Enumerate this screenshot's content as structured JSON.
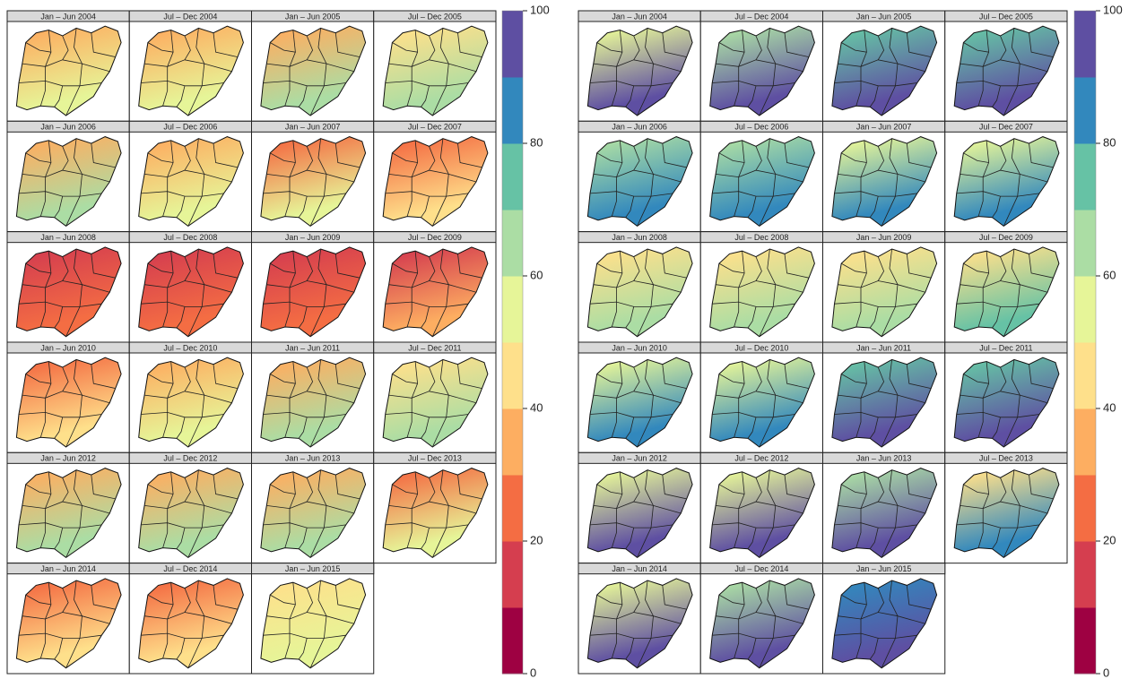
{
  "maps": [
    {
      "lim": [
        0,
        100
      ],
      "ticks": [
        0,
        20,
        40,
        60,
        80,
        100
      ],
      "colors": [
        "#9e0142",
        "#d53e4f",
        "#f46d43",
        "#fdae61",
        "#fee08b",
        "#e6f598",
        "#abdda4",
        "#66c2a5",
        "#3288bd",
        "#5e4fa2"
      ],
      "panels": [
        {
          "title": "Jan – Jun 2004",
          "colors": [
            "#fdae61",
            "#e6f598"
          ]
        },
        {
          "title": "Jul – Dec 2004",
          "colors": [
            "#fdae61",
            "#e6f598"
          ]
        },
        {
          "title": "Jan – Jun 2005",
          "colors": [
            "#fdae61",
            "#abdda4"
          ]
        },
        {
          "title": "Jul – Dec 2005",
          "colors": [
            "#fee08b",
            "#abdda4"
          ]
        },
        {
          "title": "Jan – Jun 2006",
          "colors": [
            "#fdae61",
            "#abdda4"
          ]
        },
        {
          "title": "Jul – Dec 2006",
          "colors": [
            "#fdae61",
            "#e6f598"
          ]
        },
        {
          "title": "Jan – Jun 2007",
          "colors": [
            "#f46d43",
            "#e6f598"
          ]
        },
        {
          "title": "Jul – Dec 2007",
          "colors": [
            "#f46d43",
            "#fee08b"
          ]
        },
        {
          "title": "Jan – Jun 2008",
          "colors": [
            "#d53e4f",
            "#f46d43"
          ]
        },
        {
          "title": "Jul – Dec 2008",
          "colors": [
            "#d53e4f",
            "#f46d43"
          ]
        },
        {
          "title": "Jan – Jun 2009",
          "colors": [
            "#d53e4f",
            "#f46d43"
          ]
        },
        {
          "title": "Jul – Dec 2009",
          "colors": [
            "#d53e4f",
            "#fdae61"
          ]
        },
        {
          "title": "Jan – Jun 2010",
          "colors": [
            "#f46d43",
            "#fee08b"
          ]
        },
        {
          "title": "Jul – Dec 2010",
          "colors": [
            "#fdae61",
            "#e6f598"
          ]
        },
        {
          "title": "Jan – Jun 2011",
          "colors": [
            "#fdae61",
            "#abdda4"
          ]
        },
        {
          "title": "Jul – Dec 2011",
          "colors": [
            "#fee08b",
            "#abdda4"
          ]
        },
        {
          "title": "Jan – Jun 2012",
          "colors": [
            "#fdae61",
            "#abdda4"
          ]
        },
        {
          "title": "Jul – Dec 2012",
          "colors": [
            "#fdae61",
            "#abdda4"
          ]
        },
        {
          "title": "Jan – Jun 2013",
          "colors": [
            "#fdae61",
            "#abdda4"
          ]
        },
        {
          "title": "Jul – Dec 2013",
          "colors": [
            "#f46d43",
            "#e6f598"
          ]
        },
        {
          "title": "Jan – Jun 2014",
          "colors": [
            "#f46d43",
            "#fee08b"
          ]
        },
        {
          "title": "Jul – Dec 2014",
          "colors": [
            "#f46d43",
            "#fee08b"
          ]
        },
        {
          "title": "Jan – Jun 2015",
          "colors": [
            "#fee08b",
            "#e6f598"
          ]
        }
      ]
    },
    {
      "lim": [
        0,
        100
      ],
      "ticks": [
        0,
        20,
        40,
        60,
        80,
        100
      ],
      "colors": [
        "#9e0142",
        "#d53e4f",
        "#f46d43",
        "#fdae61",
        "#fee08b",
        "#e6f598",
        "#abdda4",
        "#66c2a5",
        "#3288bd",
        "#5e4fa2"
      ],
      "panels": [
        {
          "title": "Jan – Jun 2004",
          "colors": [
            "#e6f598",
            "#5e4fa2"
          ]
        },
        {
          "title": "Jul – Dec 2004",
          "colors": [
            "#abdda4",
            "#5e4fa2"
          ]
        },
        {
          "title": "Jan – Jun 2005",
          "colors": [
            "#66c2a5",
            "#5e4fa2"
          ]
        },
        {
          "title": "Jul – Dec 2005",
          "colors": [
            "#66c2a5",
            "#5e4fa2"
          ]
        },
        {
          "title": "Jan – Jun 2006",
          "colors": [
            "#abdda4",
            "#3288bd"
          ]
        },
        {
          "title": "Jul – Dec 2006",
          "colors": [
            "#abdda4",
            "#3288bd"
          ]
        },
        {
          "title": "Jan – Jun 2007",
          "colors": [
            "#e6f598",
            "#3288bd"
          ]
        },
        {
          "title": "Jul – Dec 2007",
          "colors": [
            "#e6f598",
            "#3288bd"
          ]
        },
        {
          "title": "Jan – Jun 2008",
          "colors": [
            "#fee08b",
            "#abdda4"
          ]
        },
        {
          "title": "Jul – Dec 2008",
          "colors": [
            "#fee08b",
            "#abdda4"
          ]
        },
        {
          "title": "Jan – Jun 2009",
          "colors": [
            "#fee08b",
            "#abdda4"
          ]
        },
        {
          "title": "Jul – Dec 2009",
          "colors": [
            "#fee08b",
            "#66c2a5"
          ]
        },
        {
          "title": "Jan – Jun 2010",
          "colors": [
            "#e6f598",
            "#3288bd"
          ]
        },
        {
          "title": "Jul – Dec 2010",
          "colors": [
            "#e6f598",
            "#3288bd"
          ]
        },
        {
          "title": "Jan – Jun 2011",
          "colors": [
            "#66c2a5",
            "#5e4fa2"
          ]
        },
        {
          "title": "Jul – Dec 2011",
          "colors": [
            "#66c2a5",
            "#5e4fa2"
          ]
        },
        {
          "title": "Jan – Jun 2012",
          "colors": [
            "#e6f598",
            "#5e4fa2"
          ]
        },
        {
          "title": "Jul – Dec 2012",
          "colors": [
            "#e6f598",
            "#5e4fa2"
          ]
        },
        {
          "title": "Jan – Jun 2013",
          "colors": [
            "#abdda4",
            "#5e4fa2"
          ]
        },
        {
          "title": "Jul – Dec 2013",
          "colors": [
            "#fee08b",
            "#3288bd"
          ]
        },
        {
          "title": "Jan – Jun 2014",
          "colors": [
            "#e6f598",
            "#5e4fa2"
          ]
        },
        {
          "title": "Jul – Dec 2014",
          "colors": [
            "#abdda4",
            "#5e4fa2"
          ]
        },
        {
          "title": "Jan – Jun 2015",
          "colors": [
            "#3288bd",
            "#5e4fa2"
          ]
        }
      ]
    }
  ]
}
